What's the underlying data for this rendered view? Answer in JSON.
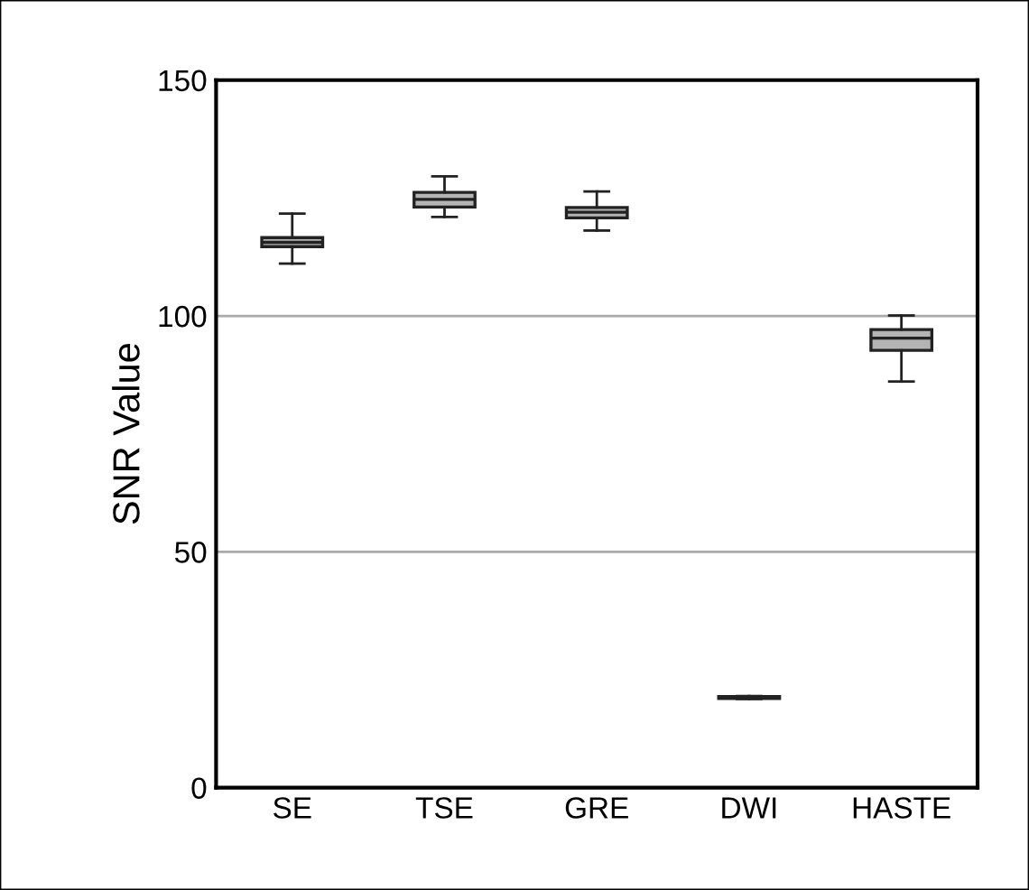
{
  "chart_data": {
    "type": "box",
    "ylabel": "SNR Value",
    "categories": [
      "SE",
      "TSE",
      "GRE",
      "DWI",
      "HASTE"
    ],
    "boxes": [
      {
        "low": 111.1,
        "q1": 114.7,
        "median": 115.6,
        "q3": 116.6,
        "high": 121.7
      },
      {
        "low": 121.0,
        "q1": 123.1,
        "median": 124.7,
        "q3": 126.2,
        "high": 129.6
      },
      {
        "low": 118.1,
        "q1": 120.8,
        "median": 122.0,
        "q3": 123.0,
        "high": 126.4
      },
      {
        "low": 18.8,
        "q1": 18.9,
        "median": 19.1,
        "q3": 19.3,
        "high": 19.4
      },
      {
        "low": 86.1,
        "q1": 92.7,
        "median": 95.3,
        "q3": 97.1,
        "high": 100.1
      }
    ],
    "color": "#b4b4b4",
    "ylim": [
      0,
      150
    ],
    "yticks": [
      0,
      50,
      100,
      150
    ],
    "grid": "y"
  }
}
